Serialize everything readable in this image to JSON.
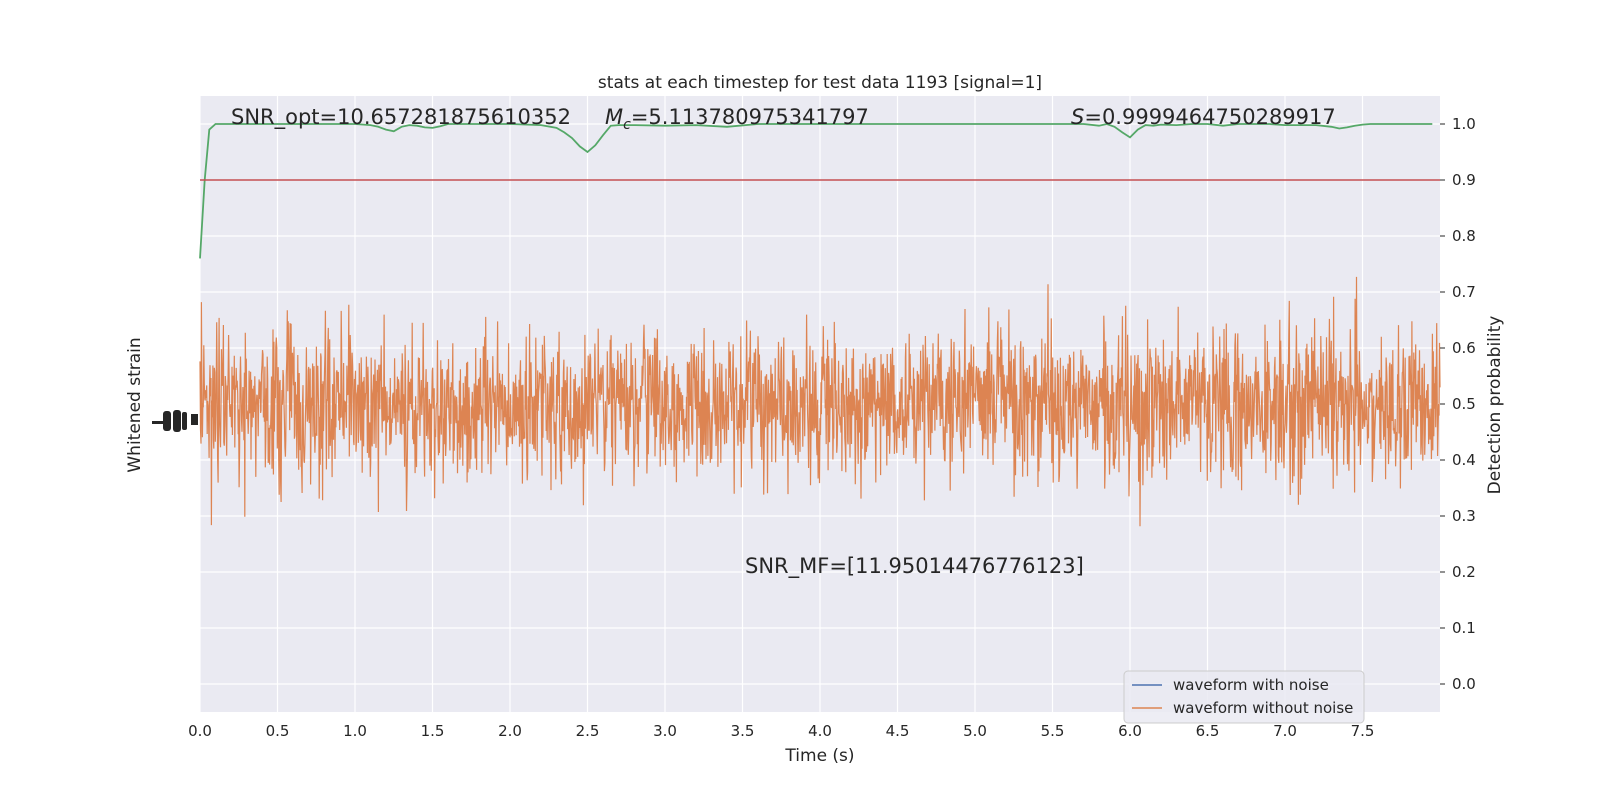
{
  "chart_data": {
    "type": "line",
    "title": "stats at each timestep for test data 1193 [signal=1]",
    "xlabel": "Time (s)",
    "ylabel_left": "Whitened strain",
    "ylabel_right": "Detection probability",
    "xlim": [
      0,
      8
    ],
    "ylim_right": [
      -0.05,
      1.05
    ],
    "x_ticks": [
      "0.0",
      "0.5",
      "1.0",
      "1.5",
      "2.0",
      "2.5",
      "3.0",
      "3.5",
      "4.0",
      "4.5",
      "5.0",
      "5.5",
      "6.0",
      "6.5",
      "7.0",
      "7.5"
    ],
    "y_ticks_right": [
      "0.0",
      "0.1",
      "0.2",
      "0.3",
      "0.4",
      "0.5",
      "0.6",
      "0.7",
      "0.8",
      "0.9",
      "1.0"
    ],
    "annotations": {
      "snr_opt": "SNR_opt=10.657281875610352",
      "mc_prefix": "M",
      "mc_sub": "c",
      "mc_value": "=5.113780975341797",
      "s_prefix": "S",
      "s_value": "=0.9999464750289917",
      "snr_mf": "SNR_MF=[11.95014476776123]"
    },
    "threshold": {
      "value": 0.9,
      "color": "#c44e52"
    },
    "series": [
      {
        "name": "waveform with noise",
        "color": "#4c72b0"
      },
      {
        "name": "waveform without noise",
        "color": "#dd8452"
      },
      {
        "color": "#55a868",
        "x": [
          0.0,
          0.03,
          0.06,
          0.1,
          0.15,
          0.3,
          0.5,
          0.7,
          0.9,
          1.0,
          1.1,
          1.15,
          1.2,
          1.25,
          1.3,
          1.35,
          1.4,
          1.45,
          1.5,
          1.55,
          1.6,
          1.7,
          1.8,
          2.0,
          2.2,
          2.3,
          2.35,
          2.4,
          2.45,
          2.5,
          2.55,
          2.6,
          2.65,
          2.7,
          2.75,
          2.8,
          3.0,
          3.2,
          3.4,
          3.6,
          3.8,
          4.0,
          4.2,
          4.5,
          4.8,
          5.0,
          5.2,
          5.4,
          5.6,
          5.7,
          5.8,
          5.85,
          5.9,
          5.95,
          6.0,
          6.05,
          6.1,
          6.15,
          6.2,
          6.3,
          6.4,
          6.5,
          6.6,
          6.7,
          6.8,
          6.9,
          7.0,
          7.2,
          7.3,
          7.35,
          7.4,
          7.45,
          7.5,
          7.55,
          7.6,
          7.7,
          7.8,
          7.95
        ],
        "values": [
          0.76,
          0.9,
          0.99,
          1.0,
          1.0,
          1.0,
          1.0,
          1.0,
          1.0,
          1.0,
          0.998,
          0.995,
          0.99,
          0.987,
          0.995,
          0.998,
          0.997,
          0.994,
          0.993,
          0.996,
          1.0,
          1.0,
          1.0,
          1.0,
          0.998,
          0.993,
          0.985,
          0.975,
          0.96,
          0.95,
          0.962,
          0.98,
          0.997,
          0.998,
          0.998,
          0.998,
          0.997,
          0.998,
          0.995,
          1.0,
          1.0,
          1.0,
          1.0,
          1.0,
          1.0,
          1.0,
          1.0,
          1.0,
          1.0,
          1.0,
          0.997,
          1.0,
          0.995,
          0.985,
          0.976,
          0.99,
          0.998,
          0.997,
          0.999,
          0.998,
          1.0,
          1.0,
          0.997,
          1.0,
          1.0,
          1.0,
          0.998,
          0.998,
          0.995,
          0.992,
          0.994,
          0.997,
          0.999,
          1.0,
          1.0,
          1.0,
          1.0,
          1.0
        ]
      }
    ],
    "legend_location": "lower-right",
    "grid": true,
    "background": "#eaeaf2"
  }
}
